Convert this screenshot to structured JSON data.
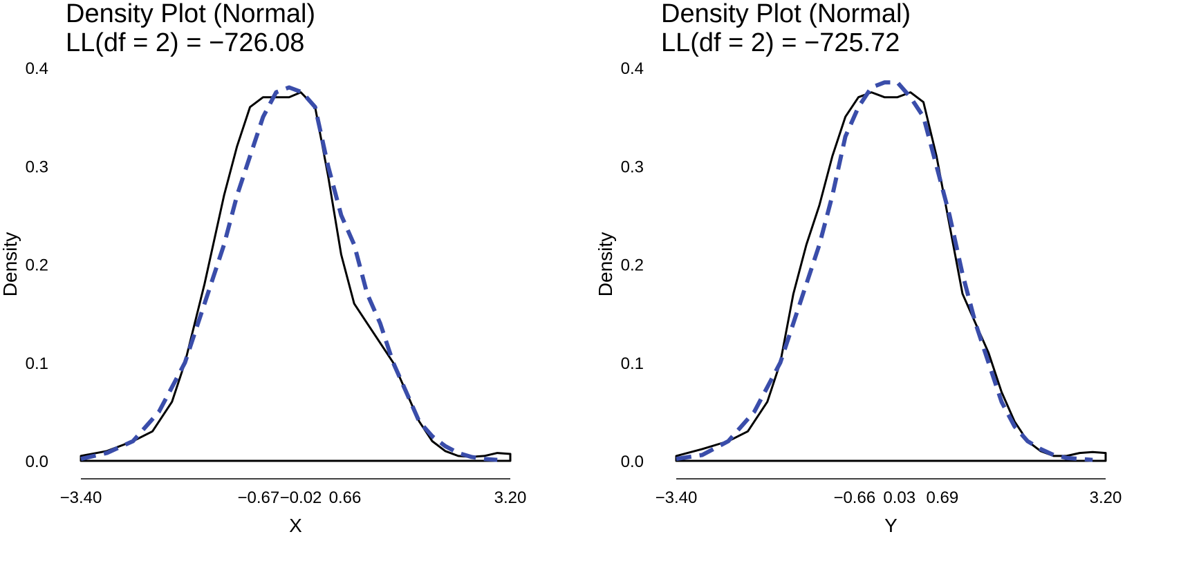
{
  "chart_data": [
    {
      "type": "line",
      "title": "Density Plot (Normal)",
      "subtitle": "LL(df = 2) = −726.08",
      "xlabel": "X",
      "ylabel": "Density",
      "xlim": [
        -3.4,
        3.2
      ],
      "ylim": [
        0,
        0.4
      ],
      "yticks": [
        "0.0",
        "0.1",
        "0.2",
        "0.3",
        "0.4"
      ],
      "yticks_values": [
        0,
        0.1,
        0.2,
        0.3,
        0.4
      ],
      "xticks": [
        "−3.40",
        "−0.67",
        "−0.02",
        "0.66",
        "3.20"
      ],
      "xticks_values": [
        -3.4,
        -0.67,
        -0.02,
        0.66,
        3.2
      ],
      "grid": false,
      "legend": "none",
      "series": [
        {
          "style": "solid",
          "color": "#000000",
          "x": [
            -3.4,
            -3.0,
            -2.6,
            -2.3,
            -2.0,
            -1.8,
            -1.5,
            -1.2,
            -1.0,
            -0.8,
            -0.6,
            -0.4,
            -0.2,
            -0.02,
            0.2,
            0.4,
            0.6,
            0.8,
            1.0,
            1.2,
            1.4,
            1.6,
            1.8,
            2.0,
            2.2,
            2.4,
            2.6,
            2.8,
            3.0,
            3.2
          ],
          "y": [
            0.005,
            0.01,
            0.02,
            0.03,
            0.06,
            0.1,
            0.18,
            0.27,
            0.32,
            0.36,
            0.37,
            0.37,
            0.37,
            0.375,
            0.36,
            0.29,
            0.21,
            0.16,
            0.14,
            0.12,
            0.1,
            0.07,
            0.04,
            0.02,
            0.01,
            0.005,
            0.004,
            0.005,
            0.008,
            0.007
          ]
        },
        {
          "style": "dashed",
          "color": "#3a4daa",
          "x": [
            -3.4,
            -3.0,
            -2.6,
            -2.2,
            -1.8,
            -1.5,
            -1.2,
            -1.0,
            -0.8,
            -0.6,
            -0.4,
            -0.2,
            0.0,
            0.2,
            0.4,
            0.6,
            0.8,
            1.0,
            1.2,
            1.4,
            1.6,
            1.8,
            2.0,
            2.2,
            2.4,
            2.6,
            2.8,
            3.0
          ],
          "y": [
            0.002,
            0.008,
            0.02,
            0.05,
            0.1,
            0.16,
            0.22,
            0.27,
            0.31,
            0.35,
            0.375,
            0.38,
            0.375,
            0.36,
            0.3,
            0.25,
            0.22,
            0.17,
            0.14,
            0.1,
            0.07,
            0.04,
            0.025,
            0.015,
            0.008,
            0.004,
            0.002,
            0.001
          ]
        }
      ]
    },
    {
      "type": "line",
      "title": "Density Plot (Normal)",
      "subtitle": "LL(df = 2) = −725.72",
      "xlabel": "Y",
      "ylabel": "Density",
      "xlim": [
        -3.4,
        3.2
      ],
      "ylim": [
        0,
        0.4
      ],
      "yticks": [
        "0.0",
        "0.1",
        "0.2",
        "0.3",
        "0.4"
      ],
      "yticks_values": [
        0,
        0.1,
        0.2,
        0.3,
        0.4
      ],
      "xticks": [
        "−3.40",
        "−0.66",
        "0.03",
        "0.69",
        "3.20"
      ],
      "xticks_values": [
        -3.4,
        -0.66,
        0.03,
        0.69,
        3.2
      ],
      "grid": false,
      "legend": "none",
      "series": [
        {
          "style": "solid",
          "color": "#000000",
          "x": [
            -3.4,
            -3.0,
            -2.6,
            -2.3,
            -2.0,
            -1.8,
            -1.6,
            -1.4,
            -1.2,
            -1.0,
            -0.8,
            -0.6,
            -0.4,
            -0.2,
            0.0,
            0.2,
            0.4,
            0.6,
            0.8,
            1.0,
            1.2,
            1.4,
            1.6,
            1.8,
            2.0,
            2.2,
            2.4,
            2.6,
            2.8,
            3.0,
            3.2
          ],
          "y": [
            0.005,
            0.012,
            0.02,
            0.03,
            0.06,
            0.1,
            0.17,
            0.22,
            0.26,
            0.31,
            0.35,
            0.37,
            0.375,
            0.37,
            0.37,
            0.375,
            0.365,
            0.31,
            0.24,
            0.17,
            0.14,
            0.11,
            0.07,
            0.04,
            0.02,
            0.01,
            0.005,
            0.005,
            0.008,
            0.009,
            0.008
          ]
        },
        {
          "style": "dashed",
          "color": "#3a4daa",
          "x": [
            -3.4,
            -3.0,
            -2.6,
            -2.2,
            -1.8,
            -1.5,
            -1.2,
            -1.0,
            -0.8,
            -0.6,
            -0.4,
            -0.2,
            0.0,
            0.2,
            0.4,
            0.6,
            0.8,
            1.0,
            1.2,
            1.4,
            1.6,
            1.8,
            2.0,
            2.2,
            2.4,
            2.6,
            2.8,
            3.0
          ],
          "y": [
            0.002,
            0.006,
            0.02,
            0.05,
            0.1,
            0.16,
            0.22,
            0.27,
            0.33,
            0.36,
            0.38,
            0.385,
            0.385,
            0.37,
            0.35,
            0.3,
            0.25,
            0.19,
            0.14,
            0.1,
            0.06,
            0.035,
            0.02,
            0.012,
            0.006,
            0.003,
            0.002,
            0.001
          ]
        }
      ]
    }
  ]
}
